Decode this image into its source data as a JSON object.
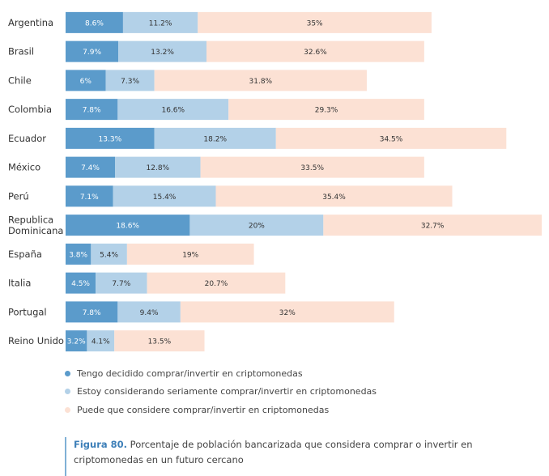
{
  "chart_data": {
    "type": "bar",
    "orientation": "horizontal",
    "stacked": true,
    "categories": [
      "Argentina",
      "Brasil",
      "Chile",
      "Colombia",
      "Ecuador",
      "México",
      "Perú",
      "Republica Dominicana",
      "España",
      "Italia",
      "Portugal",
      "Reino Unido"
    ],
    "category_lines": [
      [
        "Argentina"
      ],
      [
        "Brasil"
      ],
      [
        "Chile"
      ],
      [
        "Colombia"
      ],
      [
        "Ecuador"
      ],
      [
        "México"
      ],
      [
        "Perú"
      ],
      [
        "Republica",
        "Dominicana"
      ],
      [
        "España"
      ],
      [
        "Italia"
      ],
      [
        "Portugal"
      ],
      [
        "Reino Unido"
      ]
    ],
    "series": [
      {
        "name": "Tengo decidido comprar/invertir en criptomonedas",
        "color": "#5b9bcb",
        "label_color": "#ffffff",
        "values": [
          8.6,
          7.9,
          6,
          7.8,
          13.3,
          7.4,
          7.1,
          18.6,
          3.8,
          4.5,
          7.8,
          3.2
        ],
        "labels": [
          "8.6%",
          "7.9%",
          "6%",
          "7.8%",
          "13.3%",
          "7.4%",
          "7.1%",
          "18.6%",
          "3.8%",
          "4.5%",
          "7.8%",
          "3.2%"
        ]
      },
      {
        "name": "Estoy considerando seriamente comprar/invertir en criptomonedas",
        "color": "#b3d1e8",
        "label_color": "#333333",
        "values": [
          11.2,
          13.2,
          7.3,
          16.6,
          18.2,
          12.8,
          15.4,
          20,
          5.4,
          7.7,
          9.4,
          4.1
        ],
        "labels": [
          "11.2%",
          "13.2%",
          "7.3%",
          "16.6%",
          "18.2%",
          "12.8%",
          "15.4%",
          "20%",
          "5.4%",
          "7.7%",
          "9.4%",
          "4.1%"
        ]
      },
      {
        "name": "Puede que considere comprar/invertir en criptomonedas",
        "color": "#fce1d4",
        "label_color": "#333333",
        "values": [
          35,
          32.6,
          31.8,
          29.3,
          34.5,
          33.5,
          35.4,
          32.7,
          19,
          20.7,
          32,
          13.5
        ],
        "labels": [
          "35%",
          "32.6%",
          "31.8%",
          "29.3%",
          "34.5%",
          "33.5%",
          "35.4%",
          "32.7%",
          "19%",
          "20.7%",
          "32%",
          "13.5%"
        ]
      }
    ],
    "xlim": [
      0,
      71.3
    ],
    "title": "",
    "xlabel": "",
    "ylabel": "",
    "grid": false,
    "legend_position": "bottom-left"
  },
  "caption": {
    "figure": "Figura 80.",
    "text": " Porcentaje de población bancarizada que considera comprar o invertir en criptomonedas en un futuro cercano"
  }
}
